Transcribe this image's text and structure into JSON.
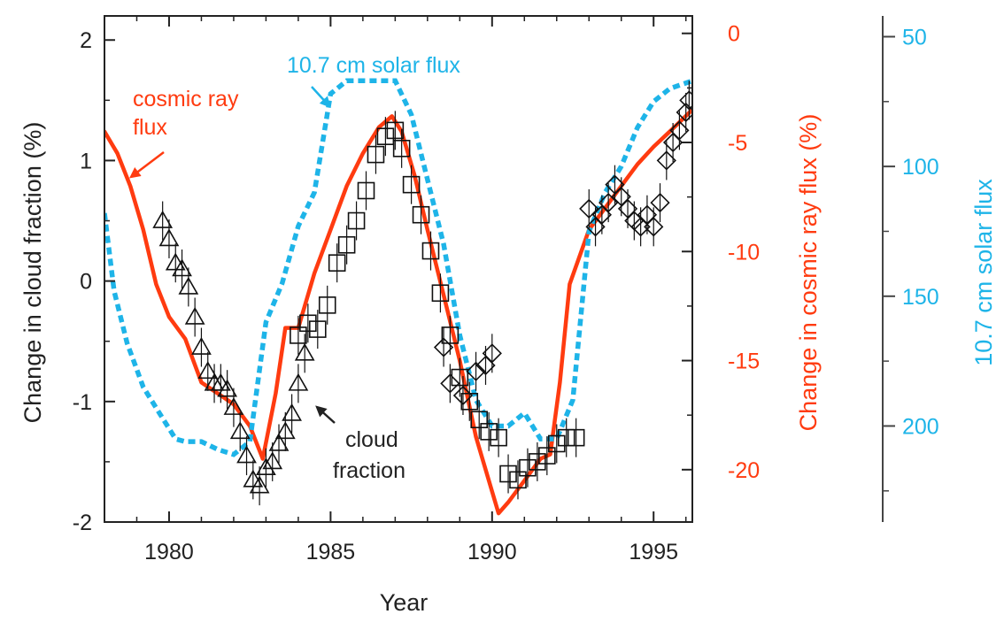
{
  "chart_data": {
    "type": "line",
    "xlabel": "Year",
    "xlim": [
      1978,
      1996.2
    ],
    "x_ticks": [
      1980,
      1985,
      1990,
      1995
    ],
    "colors": {
      "cosmic": "#ff3b10",
      "solar": "#1eb4e8",
      "cloud": "#111111"
    },
    "axes": {
      "left": {
        "label": "Change in cloud fraction (%)",
        "lim": [
          -2,
          2.2
        ],
        "ticks": [
          -2,
          -1,
          0,
          1,
          2
        ]
      },
      "right": {
        "label": "Change in cosmic ray flux (%)",
        "lim": [
          -22.4,
          0.8
        ],
        "ticks": [
          0,
          -5,
          -10,
          -15,
          -20
        ]
      },
      "far_right": {
        "label": "10.7 cm solar flux",
        "lim": [
          237,
          42
        ],
        "ticks": [
          50,
          100,
          150,
          200
        ]
      }
    },
    "annotations": {
      "cosmic": [
        "cosmic ray",
        "flux"
      ],
      "solar": "10.7 cm solar flux",
      "cloud": [
        "cloud",
        "fraction"
      ]
    },
    "series": [
      {
        "name": "cosmic ray flux",
        "axis": "right",
        "style": "solid",
        "x": [
          1978,
          1978.4,
          1978.8,
          1979.2,
          1979.6,
          1980,
          1980.5,
          1981,
          1981.5,
          1982,
          1982.5,
          1982.9,
          1983.3,
          1983.6,
          1984,
          1984.5,
          1985,
          1985.5,
          1986,
          1986.5,
          1986.9,
          1987.2,
          1987.6,
          1988,
          1988.5,
          1989,
          1989.5,
          1990,
          1990.2,
          1990.5,
          1991,
          1991.5,
          1991.8,
          1992.1,
          1992.4,
          1993,
          1993.5,
          1994,
          1994.5,
          1995,
          1995.5,
          1996.2
        ],
        "values": [
          -4.5,
          -5.5,
          -7,
          -9,
          -11.5,
          -13,
          -14,
          -16,
          -16.5,
          -17,
          -18,
          -19.5,
          -16.5,
          -13.5,
          -13.5,
          -11,
          -9,
          -7,
          -5.5,
          -4.3,
          -3.8,
          -4.5,
          -6.5,
          -9,
          -12,
          -15,
          -18.5,
          -21,
          -22,
          -21.5,
          -20.5,
          -19.5,
          -19.3,
          -16,
          -11.5,
          -9,
          -8,
          -7,
          -6,
          -5.2,
          -4.5,
          -3.5
        ]
      },
      {
        "name": "10.7 cm solar flux",
        "axis": "far_right",
        "style": "dotted",
        "x": [
          1978,
          1978.3,
          1978.7,
          1979.2,
          1979.7,
          1980.2,
          1980.5,
          1981,
          1981.5,
          1982,
          1982.5,
          1983,
          1983.5,
          1984,
          1984.5,
          1985,
          1985.5,
          1986,
          1986.5,
          1987,
          1987.5,
          1988,
          1988.5,
          1989,
          1989.5,
          1990,
          1990.5,
          1991,
          1991.5,
          1992,
          1992.5,
          1993,
          1993.5,
          1994,
          1994.5,
          1995,
          1995.5,
          1996.2
        ],
        "values": [
          118,
          148,
          168,
          185,
          195,
          205,
          206,
          206,
          209,
          211,
          206,
          160,
          145,
          123,
          110,
          72,
          67,
          67,
          67,
          67,
          80,
          105,
          130,
          165,
          190,
          200,
          200,
          195,
          205,
          205,
          190,
          125,
          110,
          100,
          85,
          75,
          70,
          67
        ]
      },
      {
        "name": "cloud fraction",
        "axis": "left",
        "style": "markers",
        "segments": [
          {
            "marker": "triangle",
            "x": [
              1979.8,
              1980.0,
              1980.2,
              1980.4,
              1980.6,
              1980.8,
              1981.0,
              1981.2,
              1981.4,
              1981.6,
              1981.8,
              1982.0,
              1982.2,
              1982.4,
              1982.6,
              1982.8,
              1983.0,
              1983.2,
              1983.4,
              1983.6,
              1983.8,
              1984.0,
              1984.2
            ],
            "values": [
              0.5,
              0.35,
              0.15,
              0.1,
              -0.05,
              -0.3,
              -0.55,
              -0.75,
              -0.85,
              -0.85,
              -0.9,
              -1.05,
              -1.25,
              -1.45,
              -1.65,
              -1.7,
              -1.55,
              -1.5,
              -1.35,
              -1.25,
              -1.1,
              -0.85,
              -0.6
            ]
          },
          {
            "marker": "square",
            "x": [
              1984.0,
              1984.3,
              1984.6,
              1984.9,
              1985.2,
              1985.5,
              1985.8,
              1986.1,
              1986.4,
              1986.7,
              1987.0,
              1987.2,
              1987.5,
              1987.8,
              1988.1,
              1988.4,
              1988.7,
              1989.0,
              1989.3,
              1989.6,
              1989.9,
              1990.2,
              1990.5,
              1990.8,
              1991.1,
              1991.4,
              1991.7,
              1992.0,
              1992.3,
              1992.6
            ],
            "values": [
              -0.45,
              -0.35,
              -0.4,
              -0.2,
              0.15,
              0.3,
              0.5,
              0.75,
              1.05,
              1.2,
              1.25,
              1.1,
              0.8,
              0.55,
              0.25,
              -0.1,
              -0.45,
              -0.8,
              -1.0,
              -1.15,
              -1.25,
              -1.3,
              -1.6,
              -1.65,
              -1.55,
              -1.5,
              -1.45,
              -1.35,
              -1.3,
              -1.3
            ]
          },
          {
            "marker": "diamond",
            "x": [
              1988.5,
              1988.7,
              1989.1,
              1989.5,
              1989.8,
              1990.0
            ],
            "values": [
              -0.55,
              -0.85,
              -0.95,
              -0.75,
              -0.7,
              -0.6
            ]
          },
          {
            "marker": "diamond",
            "x": [
              1993.0,
              1993.2,
              1993.4,
              1993.6,
              1993.8,
              1994.0,
              1994.2,
              1994.4,
              1994.6,
              1994.8,
              1995.0,
              1995.2,
              1995.4,
              1995.6,
              1995.8,
              1996.0,
              1996.1
            ],
            "values": [
              0.6,
              0.45,
              0.55,
              0.65,
              0.8,
              0.7,
              0.6,
              0.5,
              0.45,
              0.55,
              0.45,
              0.65,
              1.0,
              1.15,
              1.25,
              1.4,
              1.5
            ]
          }
        ]
      }
    ]
  }
}
